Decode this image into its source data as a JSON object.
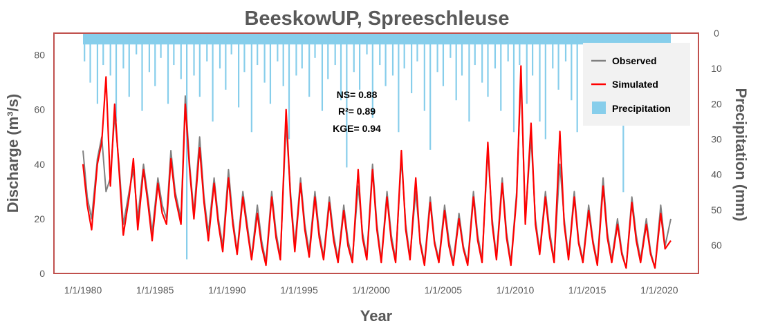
{
  "chart_data": {
    "type": "line",
    "title": "BeeskowUP, Spreeschleuse",
    "xlabel": "Year",
    "ylabel": "Discharge (m³/s)",
    "y2label": "Precipitation (mm)",
    "x_tick_labels": [
      "1/1/1980",
      "1/1/1985",
      "1/1/1990",
      "1/1/1995",
      "1/1/2000",
      "1/1/2005",
      "1/1/2010",
      "1/1/2015",
      "1/1/2020"
    ],
    "xlim": [
      1980.0,
      2020.8
    ],
    "ylim": [
      0,
      88
    ],
    "y_ticks": [
      0,
      20,
      40,
      60,
      80
    ],
    "y2lim": [
      0,
      68
    ],
    "y2_ticks": [
      0,
      10,
      20,
      30,
      40,
      50,
      60
    ],
    "y2_inverted": true,
    "stats": {
      "ns": "NS= 0.88",
      "r2": "R²= 0.89",
      "kge": "KGE= 0.94"
    },
    "legend": {
      "placement": "top-right",
      "entries": [
        "Observed",
        "Simulated",
        "Precipitation"
      ]
    },
    "colors": {
      "observed": "#808080",
      "simulated": "#ff0000",
      "precipitation": "#87ceeb",
      "frame": "#c0504d",
      "text": "#595959"
    },
    "series": [
      {
        "name": "Observed",
        "x": [
          1980.0,
          1980.3,
          1980.6,
          1981.0,
          1981.3,
          1981.6,
          1981.9,
          1982.2,
          1982.5,
          1982.8,
          1983.2,
          1983.5,
          1983.8,
          1984.2,
          1984.5,
          1984.8,
          1985.2,
          1985.5,
          1985.8,
          1986.1,
          1986.4,
          1986.8,
          1987.1,
          1987.4,
          1987.7,
          1988.1,
          1988.4,
          1988.7,
          1989.1,
          1989.4,
          1989.7,
          1990.1,
          1990.4,
          1990.7,
          1991.1,
          1991.4,
          1991.7,
          1992.1,
          1992.4,
          1992.7,
          1993.1,
          1993.4,
          1993.7,
          1994.1,
          1994.4,
          1994.7,
          1995.1,
          1995.4,
          1995.7,
          1996.1,
          1996.4,
          1996.7,
          1997.1,
          1997.4,
          1997.7,
          1998.1,
          1998.4,
          1998.7,
          1999.1,
          1999.4,
          1999.7,
          2000.1,
          2000.4,
          2000.7,
          2001.1,
          2001.4,
          2001.7,
          2002.1,
          2002.4,
          2002.7,
          2003.1,
          2003.4,
          2003.7,
          2004.1,
          2004.4,
          2004.7,
          2005.1,
          2005.4,
          2005.7,
          2006.1,
          2006.4,
          2006.7,
          2007.1,
          2007.4,
          2007.7,
          2008.1,
          2008.4,
          2008.7,
          2009.1,
          2009.4,
          2009.7,
          2010.1,
          2010.4,
          2010.7,
          2011.1,
          2011.4,
          2011.7,
          2012.1,
          2012.4,
          2012.7,
          2013.1,
          2013.4,
          2013.7,
          2014.1,
          2014.4,
          2014.7,
          2015.1,
          2015.4,
          2015.7,
          2016.1,
          2016.4,
          2016.7,
          2017.1,
          2017.4,
          2017.7,
          2018.1,
          2018.4,
          2018.7,
          2019.1,
          2019.4,
          2019.7,
          2020.1,
          2020.4,
          2020.8
        ],
        "values": [
          45,
          28,
          20,
          42,
          50,
          30,
          35,
          58,
          40,
          18,
          30,
          38,
          20,
          40,
          28,
          15,
          35,
          25,
          20,
          45,
          30,
          20,
          65,
          40,
          22,
          50,
          28,
          15,
          35,
          20,
          10,
          38,
          20,
          8,
          30,
          18,
          6,
          25,
          12,
          4,
          30,
          15,
          6,
          55,
          30,
          10,
          35,
          18,
          8,
          30,
          15,
          6,
          28,
          14,
          5,
          25,
          12,
          5,
          32,
          15,
          6,
          40,
          18,
          5,
          30,
          14,
          5,
          42,
          18,
          6,
          30,
          12,
          4,
          28,
          12,
          5,
          25,
          12,
          4,
          22,
          10,
          4,
          30,
          14,
          5,
          45,
          20,
          6,
          35,
          15,
          4,
          30,
          72,
          20,
          50,
          20,
          8,
          30,
          15,
          5,
          40,
          20,
          6,
          30,
          12,
          5,
          25,
          12,
          4,
          35,
          15,
          5,
          20,
          8,
          2,
          28,
          14,
          5,
          20,
          8,
          2,
          25,
          10,
          20
        ]
      },
      {
        "name": "Simulated",
        "x": [
          1980.0,
          1980.3,
          1980.6,
          1981.0,
          1981.3,
          1981.6,
          1981.9,
          1982.2,
          1982.5,
          1982.8,
          1983.2,
          1983.5,
          1983.8,
          1984.2,
          1984.5,
          1984.8,
          1985.2,
          1985.5,
          1985.8,
          1986.1,
          1986.4,
          1986.8,
          1987.1,
          1987.4,
          1987.7,
          1988.1,
          1988.4,
          1988.7,
          1989.1,
          1989.4,
          1989.7,
          1990.1,
          1990.4,
          1990.7,
          1991.1,
          1991.4,
          1991.7,
          1992.1,
          1992.4,
          1992.7,
          1993.1,
          1993.4,
          1993.7,
          1994.1,
          1994.4,
          1994.7,
          1995.1,
          1995.4,
          1995.7,
          1996.1,
          1996.4,
          1996.7,
          1997.1,
          1997.4,
          1997.7,
          1998.1,
          1998.4,
          1998.7,
          1999.1,
          1999.4,
          1999.7,
          2000.1,
          2000.4,
          2000.7,
          2001.1,
          2001.4,
          2001.7,
          2002.1,
          2002.4,
          2002.7,
          2003.1,
          2003.4,
          2003.7,
          2004.1,
          2004.4,
          2004.7,
          2005.1,
          2005.4,
          2005.7,
          2006.1,
          2006.4,
          2006.7,
          2007.1,
          2007.4,
          2007.7,
          2008.1,
          2008.4,
          2008.7,
          2009.1,
          2009.4,
          2009.7,
          2010.1,
          2010.4,
          2010.7,
          2011.1,
          2011.4,
          2011.7,
          2012.1,
          2012.4,
          2012.7,
          2013.1,
          2013.4,
          2013.7,
          2014.1,
          2014.4,
          2014.7,
          2015.1,
          2015.4,
          2015.7,
          2016.1,
          2016.4,
          2016.7,
          2017.1,
          2017.4,
          2017.7,
          2018.1,
          2018.4,
          2018.7,
          2019.1,
          2019.4,
          2019.7,
          2020.1,
          2020.4,
          2020.8
        ],
        "values": [
          40,
          25,
          16,
          40,
          48,
          72,
          32,
          62,
          38,
          14,
          28,
          42,
          16,
          38,
          26,
          12,
          33,
          22,
          18,
          42,
          28,
          18,
          62,
          38,
          20,
          46,
          26,
          12,
          33,
          18,
          8,
          35,
          18,
          7,
          28,
          16,
          5,
          22,
          10,
          3,
          28,
          13,
          5,
          60,
          28,
          8,
          33,
          16,
          6,
          28,
          13,
          5,
          26,
          12,
          4,
          23,
          10,
          4,
          38,
          13,
          5,
          38,
          16,
          4,
          28,
          12,
          4,
          45,
          16,
          5,
          35,
          11,
          3,
          26,
          11,
          4,
          23,
          10,
          3,
          20,
          9,
          3,
          28,
          12,
          4,
          48,
          18,
          5,
          33,
          13,
          3,
          28,
          76,
          18,
          55,
          18,
          7,
          28,
          13,
          4,
          52,
          18,
          5,
          28,
          11,
          4,
          23,
          11,
          3,
          32,
          13,
          4,
          18,
          7,
          2,
          26,
          12,
          4,
          18,
          7,
          2,
          22,
          9,
          12
        ]
      },
      {
        "name": "Precipitation",
        "x": [
          1980.1,
          1980.5,
          1981.0,
          1981.4,
          1981.9,
          1982.3,
          1982.8,
          1983.2,
          1983.7,
          1984.1,
          1984.6,
          1985.0,
          1985.4,
          1985.9,
          1986.3,
          1986.8,
          1987.2,
          1987.7,
          1988.1,
          1988.6,
          1989.0,
          1989.5,
          1989.9,
          1990.3,
          1990.8,
          1991.2,
          1991.7,
          1992.1,
          1992.6,
          1993.0,
          1993.5,
          1993.9,
          1994.3,
          1994.8,
          1995.2,
          1995.7,
          1996.1,
          1996.6,
          1997.0,
          1997.5,
          1997.9,
          1998.3,
          1998.8,
          1999.2,
          1999.7,
          2000.1,
          2000.6,
          2001.0,
          2001.5,
          2001.9,
          2002.3,
          2002.8,
          2003.2,
          2003.7,
          2004.1,
          2004.6,
          2005.0,
          2005.5,
          2005.9,
          2006.3,
          2006.8,
          2007.2,
          2007.7,
          2008.1,
          2008.6,
          2009.0,
          2009.5,
          2009.9,
          2010.3,
          2010.8,
          2011.2,
          2011.7,
          2012.1,
          2012.6,
          2013.0,
          2013.5,
          2013.9,
          2014.3,
          2014.8,
          2015.2,
          2015.7,
          2016.1,
          2016.6,
          2017.0,
          2017.5,
          2017.9,
          2018.3,
          2018.8,
          2019.2,
          2019.7,
          2020.1,
          2020.6
        ],
        "values": [
          8,
          14,
          20,
          9,
          12,
          25,
          10,
          18,
          6,
          22,
          11,
          15,
          7,
          20,
          9,
          13,
          64,
          12,
          18,
          8,
          25,
          10,
          16,
          6,
          21,
          11,
          28,
          9,
          14,
          20,
          8,
          15,
          30,
          12,
          10,
          18,
          7,
          22,
          13,
          9,
          19,
          38,
          11,
          16,
          6,
          24,
          9,
          15,
          12,
          28,
          10,
          17,
          8,
          22,
          33,
          11,
          15,
          7,
          19,
          12,
          25,
          9,
          14,
          18,
          10,
          22,
          8,
          28,
          9,
          20,
          12,
          25,
          30,
          10,
          16,
          8,
          19,
          28,
          11,
          15,
          9,
          22,
          12,
          18,
          45,
          10,
          24,
          9,
          16,
          8,
          18,
          20
        ]
      }
    ]
  }
}
